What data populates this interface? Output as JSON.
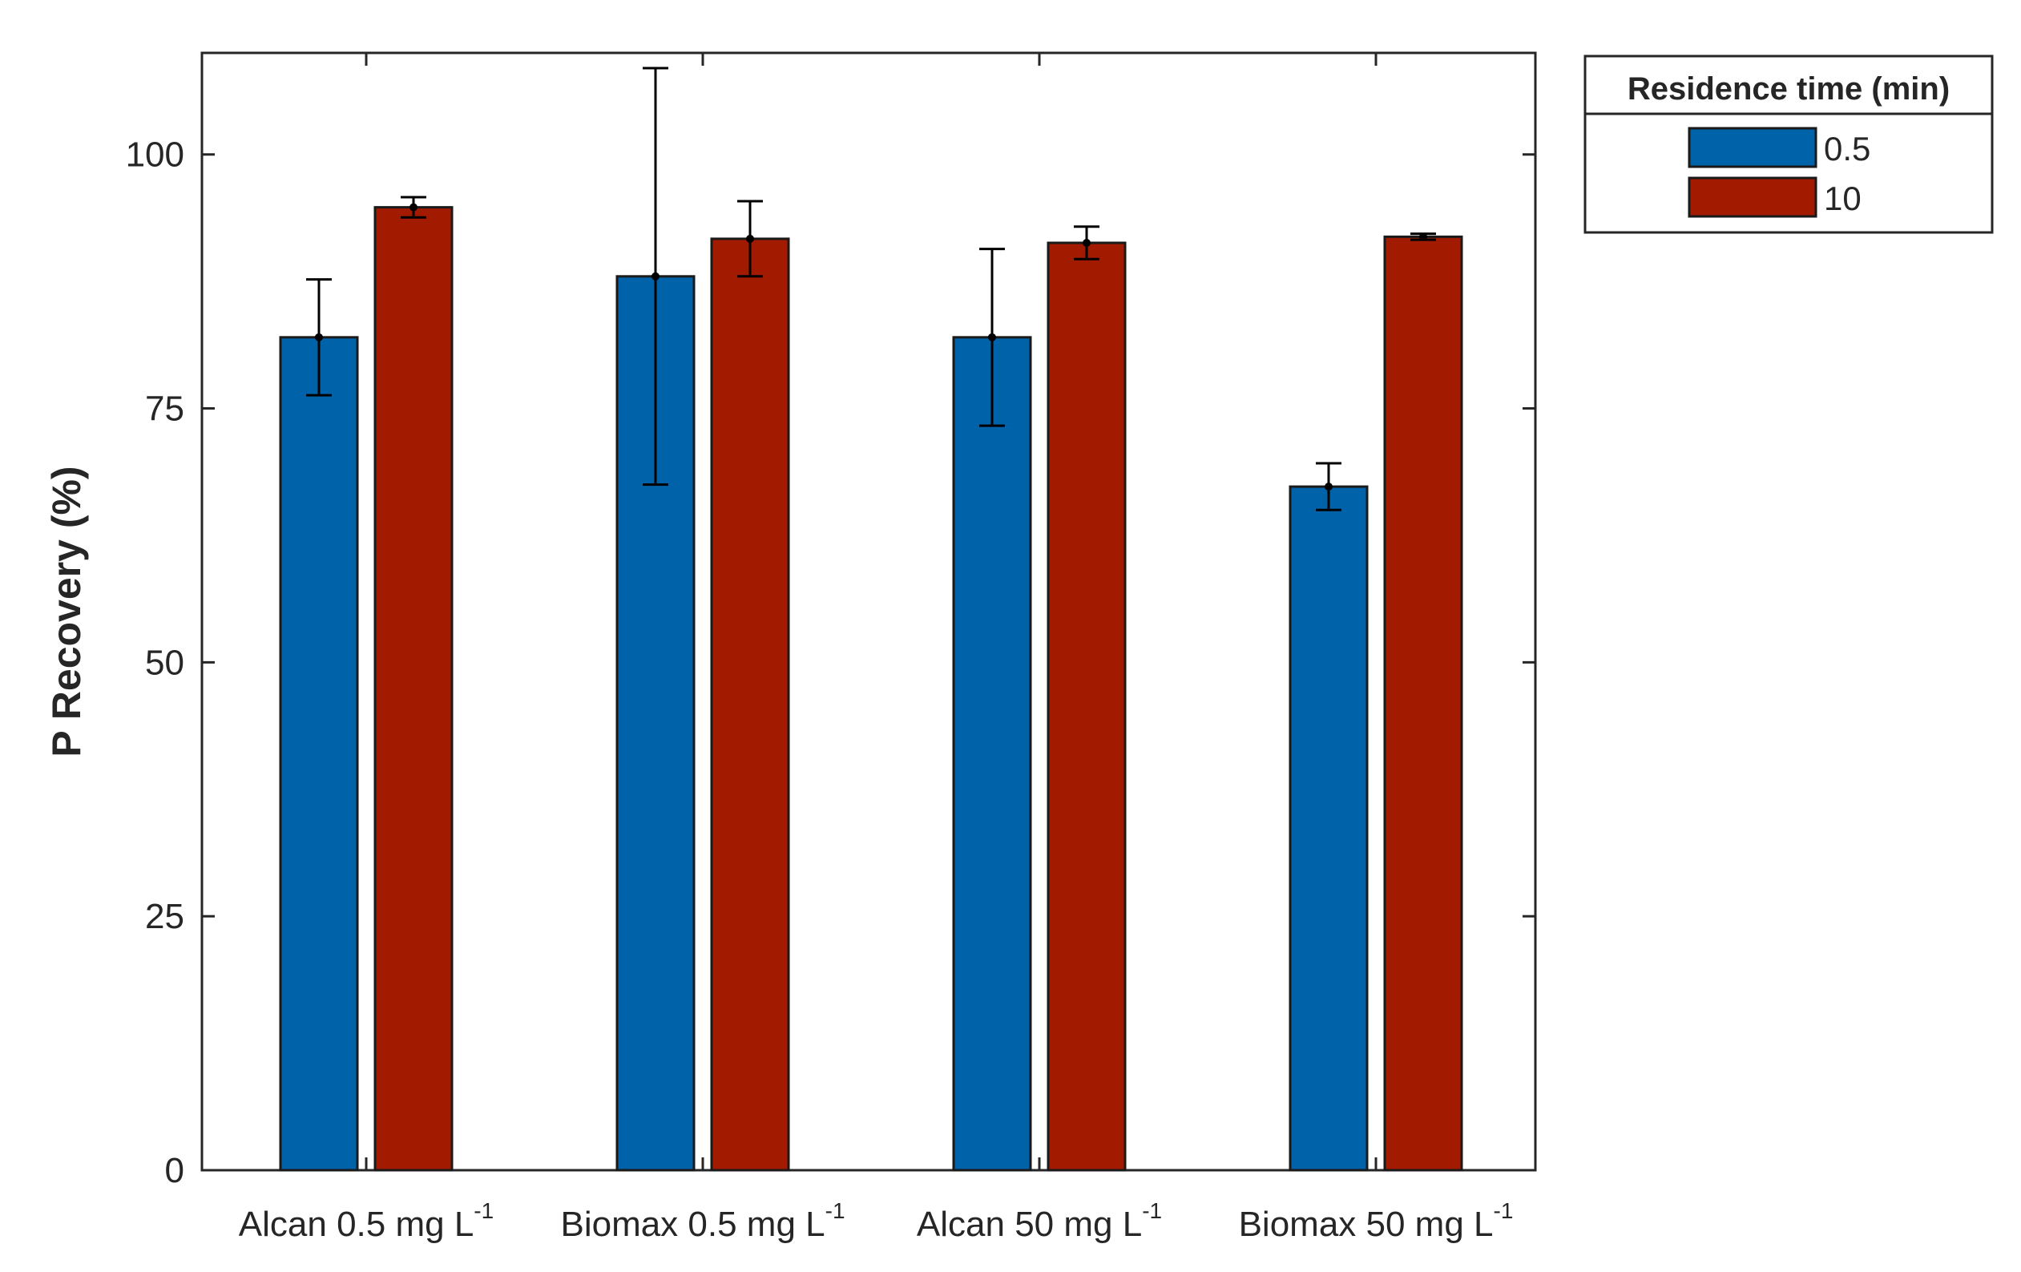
{
  "chart_data": {
    "type": "bar",
    "title": "",
    "xlabel": "",
    "ylabel": "P Recovery (%)",
    "ylim": [
      0,
      110
    ],
    "yticks": [
      0,
      25,
      50,
      75,
      100
    ],
    "grid": false,
    "categories": [
      {
        "base": "Alcan 0.5 mg L",
        "sup": "-1"
      },
      {
        "base": "Biomax 0.5 mg L",
        "sup": "-1"
      },
      {
        "base": "Alcan 50  mg L",
        "sup": "-1"
      },
      {
        "base": "Biomax 50  mg L",
        "sup": "-1"
      }
    ],
    "legend": {
      "title": "Residence time (min)",
      "placement": "outside-top-right"
    },
    "series": [
      {
        "name": "0.5",
        "color": "#0062A8",
        "values": [
          82,
          88,
          82,
          67.3
        ],
        "errors": [
          5.7,
          20.5,
          8.7,
          2.3
        ]
      },
      {
        "name": "10",
        "color": "#A21B00",
        "values": [
          94.8,
          91.7,
          91.3,
          91.9
        ],
        "errors": [
          1.0,
          3.7,
          1.6,
          0.3
        ]
      }
    ]
  }
}
